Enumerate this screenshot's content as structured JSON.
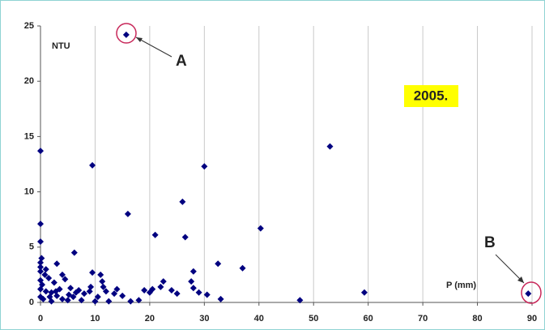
{
  "chart_data": {
    "type": "scatter",
    "x": [
      15.7,
      89.3,
      0,
      9.5,
      30,
      53,
      26,
      16,
      0,
      21,
      26.5,
      40.3,
      0,
      6.2,
      32.5,
      37,
      28,
      59.3,
      47.5,
      0,
      3,
      9.5,
      11,
      22.5,
      22,
      24,
      25,
      28,
      29,
      30.5,
      33,
      19,
      20,
      20.5,
      18,
      14,
      13.5,
      12,
      11.5,
      10.5,
      9,
      8,
      7,
      6,
      5.5,
      5,
      4.5,
      4,
      3.5,
      3,
      2.5,
      2,
      1.5,
      1,
      1,
      0.5,
      0,
      0,
      0,
      0,
      0,
      0.3,
      0.8,
      2,
      4,
      6.5,
      7.5,
      10,
      12.5,
      15,
      16.5,
      9.2,
      11.3,
      1.7,
      2.8,
      5.2,
      0.2,
      27.6
    ],
    "values": [
      24.2,
      0.8,
      13.7,
      12.4,
      12.3,
      14.1,
      9.1,
      8,
      7.1,
      6.1,
      5.9,
      6.7,
      5.5,
      4.5,
      3.5,
      3.1,
      2.8,
      0.9,
      0.2,
      3.6,
      3.5,
      2.7,
      2.5,
      1.9,
      1.4,
      1.1,
      0.8,
      1.3,
      0.9,
      0.7,
      0.3,
      1.1,
      0.9,
      1.2,
      0.2,
      1.2,
      0.8,
      1.0,
      1.4,
      0.5,
      1.0,
      0.8,
      1.1,
      0.5,
      1.3,
      0.2,
      2.1,
      2.5,
      1.2,
      0.6,
      1.8,
      0.9,
      2.2,
      1.0,
      3.0,
      0.3,
      0.5,
      1.2,
      2.0,
      2.8,
      3.2,
      1.6,
      2.5,
      0.1,
      0.3,
      0.9,
      0.2,
      0.1,
      0.1,
      0.6,
      0.1,
      1.4,
      1.9,
      0.5,
      1.0,
      0.7,
      4.0,
      1.9
    ],
    "color": "#000080",
    "xlim": [
      0,
      90
    ],
    "xticks": [
      0,
      10,
      20,
      30,
      40,
      50,
      60,
      70,
      80,
      90
    ],
    "ylim": [
      0,
      25
    ],
    "yticks": [
      0,
      5,
      10,
      15,
      20,
      25
    ],
    "grid": true,
    "annotations": [
      "NTU",
      "P (mm)",
      "2005.",
      "A",
      "B"
    ]
  }
}
